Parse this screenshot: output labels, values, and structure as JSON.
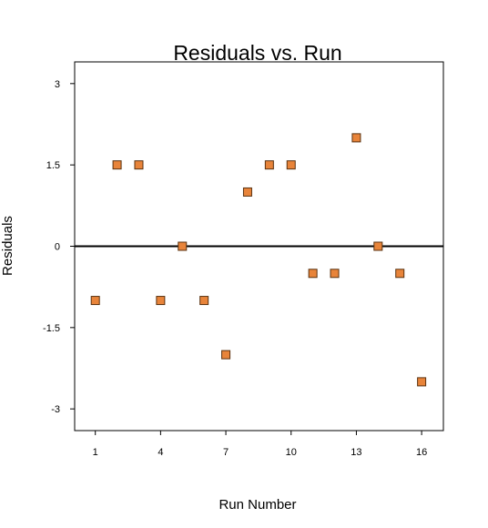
{
  "chart_data": {
    "type": "scatter",
    "title": "Residuals vs. Run",
    "xlabel": "Run Number",
    "ylabel": "Residuals",
    "xlim": [
      0.05,
      17.0
    ],
    "ylim": [
      -3.4,
      3.4
    ],
    "xticks": [
      1,
      4,
      7,
      10,
      13,
      16
    ],
    "xtick_labels": [
      "1",
      "4",
      "7",
      "10",
      "13",
      "16"
    ],
    "yticks": [
      3,
      1.5,
      0,
      -1.5,
      -3
    ],
    "ytick_labels": [
      "3",
      "1.5",
      "0",
      "-1.5",
      "-3"
    ],
    "reference_line_y": 0,
    "grid": false,
    "marker_color": "#e8843a",
    "marker_edge_color": "#5a3210",
    "x": [
      1,
      2,
      3,
      4,
      5,
      6,
      7,
      8,
      9,
      10,
      11,
      12,
      13,
      14,
      15,
      16
    ],
    "y": [
      -1,
      1.5,
      1.5,
      -1,
      0,
      -1,
      -2,
      1,
      1.5,
      1.5,
      -0.5,
      -0.5,
      2,
      0,
      -0.5,
      -2.5
    ]
  }
}
